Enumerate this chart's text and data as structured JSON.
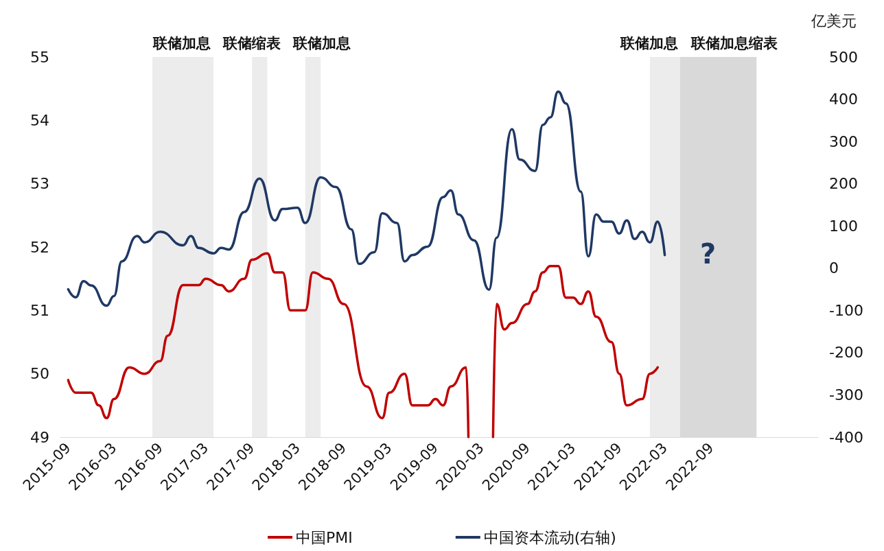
{
  "chart_data": {
    "type": "line",
    "y2label": "亿美元",
    "xlim": [
      "2015-08",
      "2023-11"
    ],
    "xticks": [
      "2015-09",
      "2016-03",
      "2016-09",
      "2017-03",
      "2017-09",
      "2018-03",
      "2018-09",
      "2019-03",
      "2019-09",
      "2020-03",
      "2020-09",
      "2021-03",
      "2021-09",
      "2022-03",
      "2022-09"
    ],
    "ylim": [
      49,
      55
    ],
    "yticks": [
      49,
      50,
      51,
      52,
      53,
      54,
      55
    ],
    "y2lim": [
      -400,
      500
    ],
    "y2ticks": [
      -400,
      -300,
      -200,
      -100,
      0,
      100,
      200,
      300,
      400,
      500
    ],
    "grid": false,
    "legend": "bottom",
    "line_style": "solid",
    "bands": [
      {
        "axis": "x",
        "from": "2016-08",
        "to": "2017-04",
        "label": "联储加息",
        "color": "#ececec"
      },
      {
        "axis": "x",
        "from": "2017-09",
        "to": "2017-11",
        "label": "联储缩表",
        "color": "#ececec"
      },
      {
        "axis": "x",
        "from": "2018-04",
        "to": "2018-06",
        "label": "联储加息",
        "color": "#ececec"
      },
      {
        "axis": "x",
        "from": "2022-01",
        "to": "2022-05",
        "label": "联储加息",
        "color": "#ececec"
      },
      {
        "axis": "x",
        "from": "2022-05",
        "to": "2023-03",
        "label": "联储加息缩表",
        "color": "#d9d9d9"
      }
    ],
    "annotations": [
      "?"
    ],
    "series": [
      {
        "name": "中国PMI",
        "color": "#c00000",
        "x": [
          "2015-09",
          "2015-10",
          "2015-12",
          "2016-01",
          "2016-02",
          "2016-03",
          "2016-05",
          "2016-07",
          "2016-09",
          "2016-10",
          "2016-12",
          "2017-02",
          "2017-03",
          "2017-05",
          "2017-06",
          "2017-08",
          "2017-09",
          "2017-11",
          "2017-12",
          "2018-01",
          "2018-02",
          "2018-04",
          "2018-05",
          "2018-07",
          "2018-09",
          "2018-12",
          "2019-02",
          "2019-03",
          "2019-05",
          "2019-06",
          "2019-08",
          "2019-09",
          "2019-10",
          "2019-11",
          "2020-01",
          "2020-01-10",
          "2020-02-15",
          "2020-04-17",
          "2020-05",
          "2020-06",
          "2020-07",
          "2020-09",
          "2020-10",
          "2020-11",
          "2020-12",
          "2021-01",
          "2021-02",
          "2021-03",
          "2021-04",
          "2021-05",
          "2021-06",
          "2021-08",
          "2021-09",
          "2021-10",
          "2021-12",
          "2022-01",
          "2022-02"
        ],
        "values": [
          49.9,
          49.7,
          49.7,
          49.5,
          49.3,
          49.6,
          50.1,
          50.0,
          50.2,
          50.6,
          51.4,
          51.4,
          51.5,
          51.4,
          51.3,
          51.5,
          51.8,
          51.9,
          51.6,
          51.6,
          51.0,
          51.0,
          51.6,
          51.5,
          51.1,
          49.8,
          49.3,
          49.7,
          50.0,
          49.5,
          49.5,
          49.6,
          49.5,
          49.8,
          50.1,
          49,
          null,
          49,
          51.1,
          50.7,
          50.8,
          51.1,
          51.3,
          51.6,
          51.7,
          51.7,
          51.2,
          51.2,
          51.1,
          51.3,
          50.9,
          50.5,
          50.0,
          49.5,
          49.6,
          50.0,
          50.1
        ]
      },
      {
        "name": "中国资本流动(右轴)",
        "color": "#1f3864",
        "axis": "y2",
        "x": [
          "2015-09",
          "2015-10",
          "2015-11",
          "2015-12",
          "2016-02",
          "2016-03",
          "2016-04",
          "2016-06",
          "2016-07",
          "2016-09",
          "2016-12",
          "2017-01",
          "2017-02",
          "2017-04",
          "2017-05",
          "2017-06",
          "2017-08",
          "2017-10",
          "2017-12",
          "2018-01",
          "2018-03",
          "2018-04",
          "2018-06",
          "2018-08",
          "2018-10",
          "2018-11",
          "2019-01",
          "2019-02",
          "2019-04",
          "2019-05",
          "2019-06",
          "2019-08",
          "2019-10",
          "2019-11",
          "2019-12",
          "2020-02",
          "2020-04",
          "2020-05",
          "2020-07",
          "2020-08",
          "2020-10",
          "2020-11",
          "2020-12",
          "2021-01",
          "2021-02",
          "2021-04",
          "2021-05",
          "2021-06",
          "2021-07",
          "2021-08",
          "2021-09",
          "2021-10",
          "2021-11",
          "2021-12",
          "2022-01",
          "2022-02",
          "2022-03"
        ],
        "values": [
          -50,
          -69,
          -31,
          -41,
          -89,
          -66,
          16,
          76,
          61,
          86,
          54,
          76,
          48,
          35,
          48,
          44,
          133,
          212,
          113,
          140,
          143,
          107,
          215,
          192,
          92,
          10,
          38,
          130,
          107,
          16,
          31,
          51,
          168,
          184,
          127,
          66,
          -51,
          72,
          329,
          257,
          230,
          339,
          357,
          418,
          390,
          181,
          28,
          127,
          110,
          110,
          82,
          113,
          69,
          86,
          61,
          110,
          31
        ]
      }
    ]
  }
}
